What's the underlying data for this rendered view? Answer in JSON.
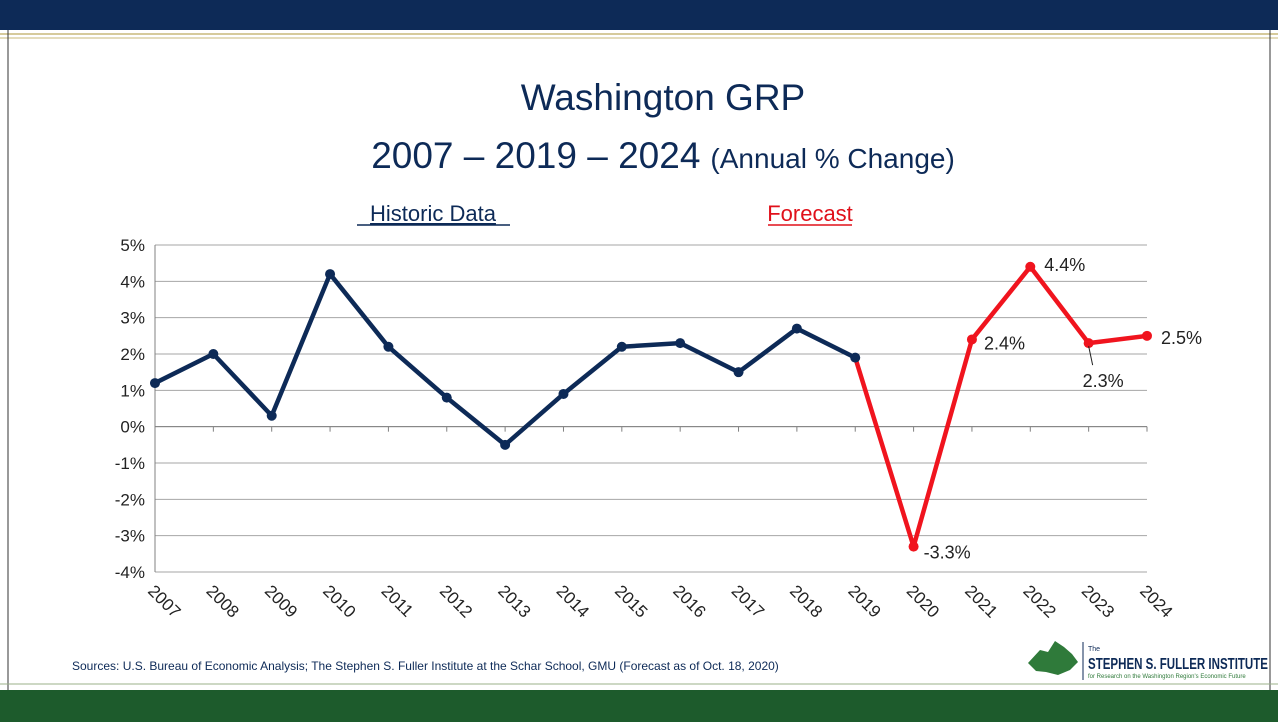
{
  "chart_data": {
    "type": "line",
    "title": "Washington GRP",
    "subtitle": "2007 – 2019 – 2024",
    "subtitle_note": "(Annual % Change)",
    "annotations": [
      "Historic Data",
      "Forecast"
    ],
    "source": "Sources: U.S. Bureau of Economic Analysis; The Stephen S. Fuller Institute at the Schar School, GMU (Forecast as of Oct. 18, 2020)",
    "logo": {
      "small": "The",
      "name": "STEPHEN S. FULLER INSTITUTE",
      "tagline": "for Research on the Washington Region's Economic Future"
    },
    "categories": [
      "2007",
      "2008",
      "2009",
      "2010",
      "2011",
      "2012",
      "2013",
      "2014",
      "2015",
      "2016",
      "2017",
      "2018",
      "2019",
      "2020",
      "2021",
      "2022",
      "2023",
      "2024"
    ],
    "series": [
      {
        "color": "#0d2a57",
        "values": [
          1.2,
          2.0,
          0.3,
          4.2,
          2.2,
          0.8,
          -0.5,
          0.9,
          2.2,
          2.3,
          1.5,
          2.7,
          1.9,
          null,
          null,
          null,
          null,
          null
        ]
      },
      {
        "color": "#f0141e",
        "values": [
          null,
          null,
          null,
          null,
          null,
          null,
          null,
          null,
          null,
          null,
          null,
          null,
          1.9,
          -3.3,
          2.4,
          4.4,
          2.3,
          2.5
        ],
        "value_labels": [
          null,
          null,
          null,
          null,
          null,
          null,
          null,
          null,
          null,
          null,
          null,
          null,
          null,
          "-3.3%",
          "2.4%",
          "4.4%",
          "2.3%",
          "2.5%"
        ]
      }
    ],
    "ylim": [
      -4,
      5
    ],
    "yticks": [
      {
        "value": -4,
        "label": "-4%"
      },
      {
        "value": -3,
        "label": "-3%"
      },
      {
        "value": -2,
        "label": "-2%"
      },
      {
        "value": -1,
        "label": "-1%"
      },
      {
        "value": 0,
        "label": "0%"
      },
      {
        "value": 1,
        "label": "1%"
      },
      {
        "value": 2,
        "label": "2%"
      },
      {
        "value": 3,
        "label": "3%"
      },
      {
        "value": 4,
        "label": "4%"
      },
      {
        "value": 5,
        "label": "5%"
      }
    ],
    "grid": true
  }
}
